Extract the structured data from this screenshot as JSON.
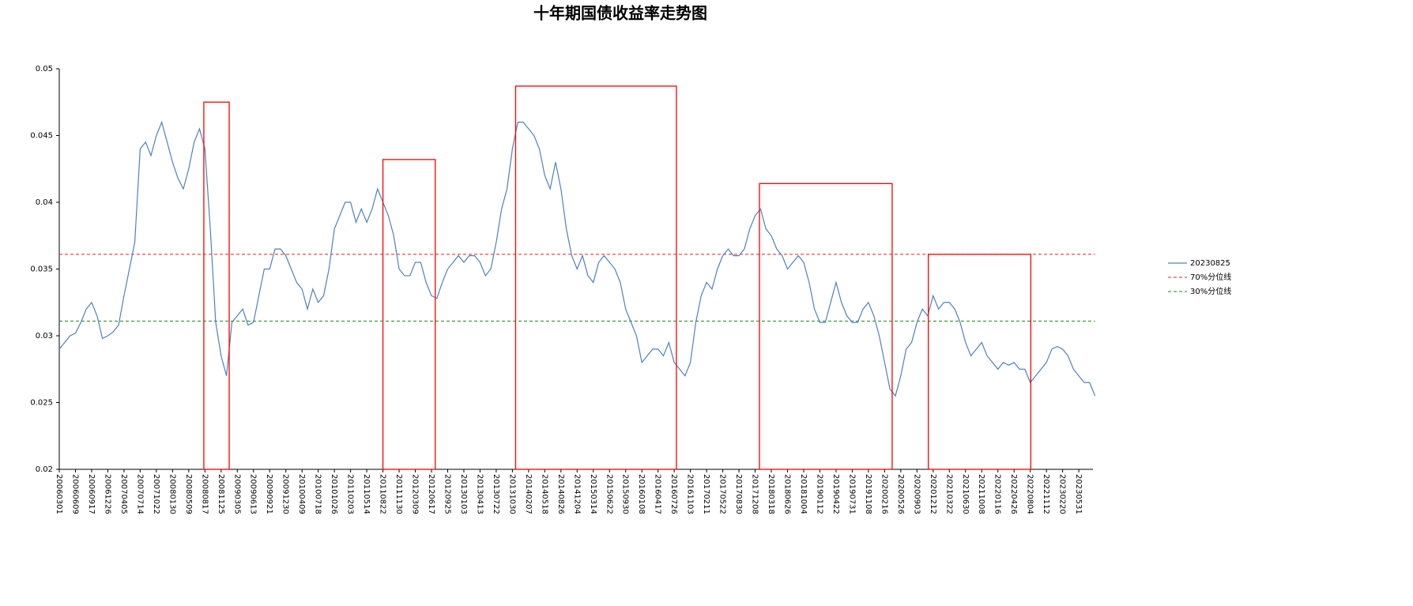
{
  "chart_data": {
    "type": "line",
    "title": "十年期国债收益率走势图",
    "categories": [
      "20060301",
      null,
      null,
      "20060609",
      null,
      null,
      "20060917",
      null,
      null,
      "20061226",
      null,
      null,
      "20070405",
      null,
      null,
      "20070714",
      null,
      null,
      "20071022",
      null,
      null,
      "20080130",
      null,
      null,
      "20080509",
      null,
      null,
      "20080817",
      null,
      null,
      "20081125",
      null,
      null,
      "20090305",
      null,
      null,
      "20090613",
      null,
      null,
      "20090921",
      null,
      null,
      "20091230",
      null,
      null,
      "20100409",
      null,
      null,
      "20100718",
      null,
      null,
      "20101026",
      null,
      null,
      "20110203",
      null,
      null,
      "20110514",
      null,
      null,
      "20110822",
      null,
      null,
      "20111130",
      null,
      null,
      "20120309",
      null,
      null,
      "20120617",
      null,
      null,
      "20120925",
      null,
      null,
      "20130103",
      null,
      null,
      "20130413",
      null,
      null,
      "20130722",
      null,
      null,
      "20131030",
      null,
      null,
      "20140207",
      null,
      null,
      "20140518",
      null,
      null,
      "20140826",
      null,
      null,
      "20141204",
      null,
      null,
      "20150314",
      null,
      null,
      "20150622",
      null,
      null,
      "20150930",
      null,
      null,
      "20160108",
      null,
      null,
      "20160417",
      null,
      null,
      "20160726",
      null,
      null,
      "20161103",
      null,
      null,
      "20170211",
      null,
      null,
      "20170522",
      null,
      null,
      "20170830",
      null,
      null,
      "20171208",
      null,
      null,
      "20180318",
      null,
      null,
      "20180626",
      null,
      null,
      "20181004",
      null,
      null,
      "20190112",
      null,
      null,
      "20190422",
      null,
      null,
      "20190731",
      null,
      null,
      "20191108",
      null,
      null,
      "20200216",
      null,
      null,
      "20200526",
      null,
      null,
      "20200903",
      null,
      null,
      "20201212",
      null,
      null,
      "20210322",
      null,
      null,
      "20210630",
      null,
      null,
      "20211008",
      null,
      null,
      "20220116",
      null,
      null,
      "20220426",
      null,
      null,
      "20220804",
      null,
      null,
      "20221112",
      null,
      null,
      "20230220",
      null,
      null,
      "20230531",
      null,
      null,
      null
    ],
    "series": [
      {
        "name": "20230825",
        "color": "#4f81bd",
        "values": [
          0.029,
          0.0295,
          0.03,
          0.0302,
          0.031,
          0.032,
          0.0325,
          0.0315,
          0.0298,
          0.03,
          0.0303,
          0.0308,
          0.033,
          0.035,
          0.037,
          0.044,
          0.0445,
          0.0435,
          0.045,
          0.046,
          0.0445,
          0.043,
          0.0418,
          0.041,
          0.0425,
          0.0445,
          0.0455,
          0.044,
          0.038,
          0.031,
          0.0285,
          0.027,
          0.031,
          0.0315,
          0.032,
          0.0308,
          0.031,
          0.033,
          0.035,
          0.035,
          0.0365,
          0.0365,
          0.036,
          0.035,
          0.034,
          0.0335,
          0.032,
          0.0335,
          0.0325,
          0.033,
          0.035,
          0.038,
          0.039,
          0.04,
          0.04,
          0.0385,
          0.0395,
          0.0385,
          0.0395,
          0.041,
          0.04,
          0.039,
          0.0375,
          0.035,
          0.0345,
          0.0345,
          0.0355,
          0.0355,
          0.034,
          0.033,
          0.0328,
          0.034,
          0.035,
          0.0355,
          0.036,
          0.0355,
          0.036,
          0.036,
          0.0355,
          0.0345,
          0.035,
          0.037,
          0.0395,
          0.041,
          0.044,
          0.046,
          0.046,
          0.0455,
          0.045,
          0.044,
          0.042,
          0.041,
          0.043,
          0.041,
          0.038,
          0.036,
          0.035,
          0.036,
          0.0345,
          0.034,
          0.0355,
          0.036,
          0.0355,
          0.035,
          0.034,
          0.032,
          0.031,
          0.03,
          0.028,
          0.0285,
          0.029,
          0.029,
          0.0285,
          0.0295,
          0.028,
          0.0275,
          0.027,
          0.028,
          0.031,
          0.033,
          0.034,
          0.0335,
          0.035,
          0.036,
          0.0365,
          0.036,
          0.036,
          0.0365,
          0.038,
          0.039,
          0.0395,
          0.038,
          0.0375,
          0.0365,
          0.036,
          0.035,
          0.0355,
          0.036,
          0.0355,
          0.034,
          0.032,
          0.031,
          0.031,
          0.0325,
          0.034,
          0.0325,
          0.0315,
          0.031,
          0.031,
          0.032,
          0.0325,
          0.0315,
          0.03,
          0.028,
          0.026,
          0.0255,
          0.027,
          0.029,
          0.0295,
          0.031,
          0.032,
          0.0315,
          0.033,
          0.032,
          0.0325,
          0.0325,
          0.032,
          0.031,
          0.0295,
          0.0285,
          0.029,
          0.0295,
          0.0285,
          0.028,
          0.0275,
          0.028,
          0.0278,
          0.028,
          0.0275,
          0.0275,
          0.0265,
          0.027,
          0.0275,
          0.028,
          0.029,
          0.0292,
          0.029,
          0.0285,
          0.0275,
          0.027,
          0.0265,
          0.0265,
          0.0255
        ]
      }
    ],
    "hlines": [
      {
        "name": "70%分位线",
        "value": 0.0361,
        "color": "#e02020"
      },
      {
        "name": "30%分位线",
        "value": 0.0311,
        "color": "#1a8a1a"
      }
    ],
    "boxes": [
      {
        "x": [
          26.8,
          31.5
        ],
        "y": [
          0.02,
          0.0475
        ],
        "color": "#ff0000"
      },
      {
        "x": [
          60,
          69.7
        ],
        "y": [
          0.02,
          0.0432
        ],
        "color": "#ff0000"
      },
      {
        "x": [
          84.6,
          114.4
        ],
        "y": [
          0.02,
          0.0487
        ],
        "color": "#ff0000"
      },
      {
        "x": [
          129.8,
          154.4
        ],
        "y": [
          0.02,
          0.0414
        ],
        "color": "#ff0000"
      },
      {
        "x": [
          161.1,
          180.1
        ],
        "y": [
          0.02,
          0.0361
        ],
        "color": "#ff0000"
      }
    ],
    "ylim": [
      0.02,
      0.05
    ],
    "yticks": [
      0.02,
      0.025,
      0.03,
      0.035,
      0.04,
      0.045,
      0.05
    ],
    "legend": "right"
  }
}
